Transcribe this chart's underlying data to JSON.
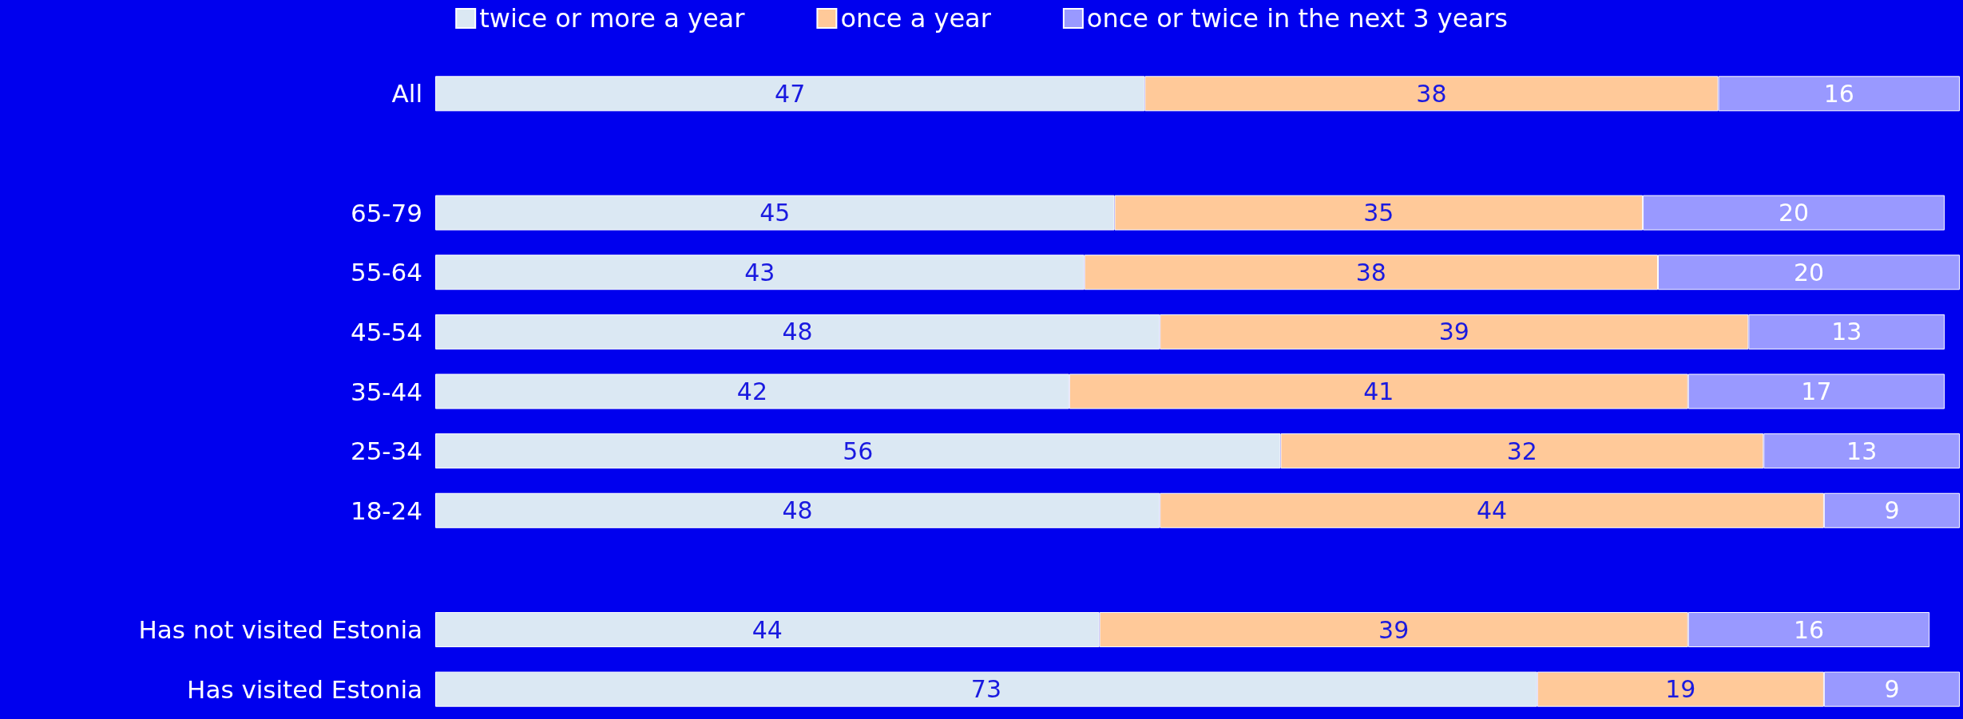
{
  "chart_data": {
    "type": "bar",
    "orientation": "horizontal",
    "stacked": true,
    "data_labels": true,
    "legend": "top",
    "tick_labels": "y",
    "grid": false,
    "xlim": [
      0,
      101
    ],
    "categories": [
      "All",
      null,
      "65-79",
      "55-64",
      "45-54",
      "35-44",
      "25-34",
      "18-24",
      null,
      "Has not visited Estonia",
      "Has visited Estonia"
    ],
    "series": [
      {
        "name": "twice or more a year",
        "color": "#dbe8f3",
        "values": [
          47,
          null,
          45,
          43,
          48,
          42,
          56,
          48,
          null,
          44,
          73
        ]
      },
      {
        "name": "once a year",
        "color": "#ffc999",
        "values": [
          38,
          null,
          35,
          38,
          39,
          41,
          32,
          44,
          null,
          39,
          19
        ]
      },
      {
        "name": "once or twice in the next 3 years",
        "color": "#9999ff",
        "values": [
          16,
          null,
          20,
          20,
          13,
          17,
          13,
          9,
          null,
          16,
          9
        ]
      }
    ]
  }
}
